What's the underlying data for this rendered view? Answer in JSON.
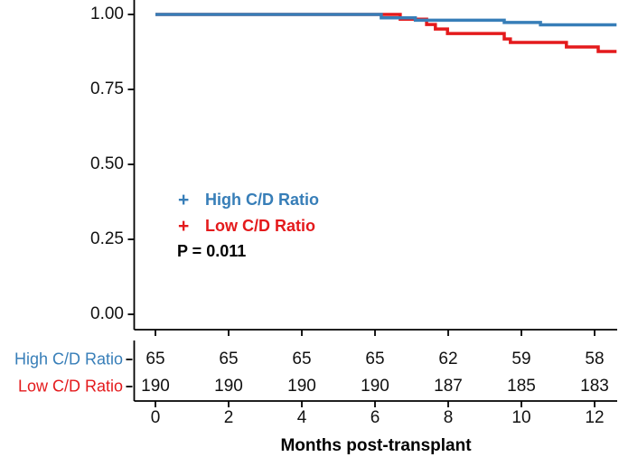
{
  "chart_data": {
    "type": "line",
    "subtype": "kaplan-meier-step",
    "title": "",
    "xlabel": "Months post-transplant",
    "ylabel": "",
    "xlim": [
      0,
      12.6
    ],
    "ylim": [
      0.0,
      1.0
    ],
    "grid": false,
    "legend_position": "inside-center-left",
    "pvalue_label": "P = 0.011",
    "legend_marker": "+",
    "xticks": [
      {
        "label": "0",
        "value": 0
      },
      {
        "label": "2",
        "value": 2
      },
      {
        "label": "4",
        "value": 4
      },
      {
        "label": "6",
        "value": 6
      },
      {
        "label": "8",
        "value": 8
      },
      {
        "label": "10",
        "value": 10
      },
      {
        "label": "12",
        "value": 12
      }
    ],
    "yticks": [
      {
        "label": "1.00",
        "value": 1.0
      },
      {
        "label": "0.75",
        "value": 0.75
      },
      {
        "label": "0.50",
        "value": 0.5
      },
      {
        "label": "0.25",
        "value": 0.25
      },
      {
        "label": "0.00",
        "value": 0.0
      }
    ],
    "series": [
      {
        "name": "High C/D Ratio",
        "color": "#377EB8",
        "steps": [
          [
            0,
            1.0
          ],
          [
            6.17,
            0.9885
          ],
          [
            7.1,
            0.9808
          ],
          [
            9.53,
            0.9731
          ],
          [
            10.52,
            0.9654
          ],
          [
            12.6,
            0.9654
          ]
        ]
      },
      {
        "name": "Low C/D Ratio",
        "color": "#E41A1C",
        "steps": [
          [
            0,
            1.0
          ],
          [
            6.69,
            0.9842
          ],
          [
            7.41,
            0.9665
          ],
          [
            7.65,
            0.9515
          ],
          [
            7.98,
            0.9365
          ],
          [
            9.53,
            0.9185
          ],
          [
            9.7,
            0.9065
          ],
          [
            11.23,
            0.8915
          ],
          [
            12.1,
            0.8765
          ],
          [
            12.6,
            0.8765
          ]
        ]
      }
    ],
    "risk_table": {
      "times": [
        0,
        2,
        4,
        6,
        8,
        10,
        12
      ],
      "rows": [
        {
          "label": "High C/D Ratio",
          "color": "#377EB8",
          "values": [
            "65",
            "65",
            "65",
            "65",
            "62",
            "59",
            "58"
          ]
        },
        {
          "label": "Low C/D Ratio",
          "color": "#E41A1C",
          "values": [
            "190",
            "190",
            "190",
            "190",
            "187",
            "185",
            "183"
          ]
        }
      ]
    },
    "axis_color": "#000000"
  }
}
